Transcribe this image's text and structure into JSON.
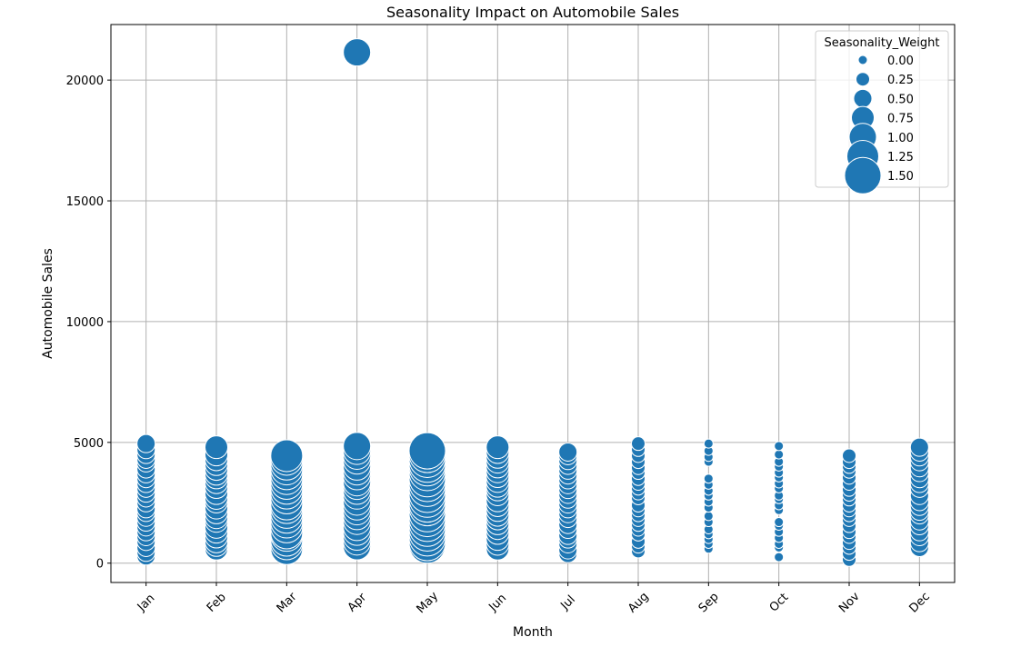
{
  "chart_data": {
    "type": "scatter",
    "title": "Seasonality Impact on Automobile Sales",
    "xlabel": "Month",
    "ylabel": "Automobile Sales",
    "categories": [
      "Jan",
      "Feb",
      "Mar",
      "Apr",
      "May",
      "Jun",
      "Jul",
      "Aug",
      "Sep",
      "Oct",
      "Nov",
      "Dec"
    ],
    "y_ticks": [
      0,
      5000,
      10000,
      15000,
      20000
    ],
    "ylim": [
      -800,
      22300
    ],
    "grid": true,
    "marker_color": "#1f77b4",
    "legend": {
      "title": "Seasonality_Weight",
      "placement": "top-right",
      "entries": [
        "0.00",
        "0.25",
        "0.50",
        "0.75",
        "1.00",
        "1.25",
        "1.50"
      ],
      "values": [
        0.0,
        0.25,
        0.5,
        0.75,
        1.0,
        1.25,
        1.5
      ]
    },
    "series": [
      {
        "month": "Jan",
        "weight": 0.5,
        "sales": [
          300,
          450,
          650,
          900,
          1100,
          1300,
          1500,
          1700,
          1900,
          2100,
          2250,
          2500,
          2700,
          2900,
          3100,
          3300,
          3500,
          3700,
          3900,
          4150,
          4300,
          4500,
          4700,
          4950
        ]
      },
      {
        "month": "Feb",
        "weight": 0.75,
        "sales": [
          600,
          750,
          900,
          1100,
          1300,
          1500,
          1750,
          1900,
          2100,
          2300,
          2550,
          2700,
          2900,
          3150,
          3350,
          3550,
          3700,
          3900,
          4100,
          4300,
          4500,
          4800
        ]
      },
      {
        "month": "Mar",
        "weight": 1.25,
        "sales": [
          600,
          800,
          950,
          1150,
          1250,
          1500,
          1700,
          1900,
          2100,
          2300,
          2450,
          2700,
          2900,
          3100,
          3300,
          3500,
          3700,
          3900,
          4100,
          4300,
          4450
        ]
      },
      {
        "month": "Apr",
        "weight": 1.0,
        "sales": [
          700,
          900,
          1100,
          1300,
          1500,
          1750,
          1950,
          2150,
          2350,
          2550,
          2800,
          3000,
          3200,
          3350,
          3600,
          3800,
          4000,
          4250,
          4450,
          4650,
          4850,
          21150
        ]
      },
      {
        "month": "May",
        "weight": 1.5,
        "sales": [
          750,
          850,
          1050,
          1250,
          1450,
          1650,
          1850,
          2050,
          2300,
          2450,
          2650,
          2850,
          3100,
          3300,
          3500,
          3750,
          3950,
          4100,
          4300,
          4500,
          4650
        ]
      },
      {
        "month": "Jun",
        "weight": 0.75,
        "sales": [
          600,
          800,
          1000,
          1250,
          1450,
          1650,
          1850,
          2000,
          2200,
          2400,
          2600,
          2850,
          3050,
          3200,
          3400,
          3600,
          3800,
          4000,
          4200,
          4400,
          4600,
          4800
        ]
      },
      {
        "month": "Jul",
        "weight": 0.5,
        "sales": [
          400,
          550,
          800,
          1000,
          1150,
          1400,
          1600,
          1850,
          2050,
          2250,
          2450,
          2650,
          2850,
          3050,
          3250,
          3450,
          3650,
          3850,
          4050,
          4250,
          4450,
          4600
        ]
      },
      {
        "month": "Aug",
        "weight": 0.25,
        "sales": [
          500,
          700,
          900,
          1200,
          1400,
          1600,
          1800,
          2000,
          2200,
          2400,
          2700,
          2900,
          3100,
          3300,
          3500,
          3750,
          3950,
          4200,
          4450,
          4700,
          4950
        ]
      },
      {
        "month": "Sep",
        "weight": 0.0,
        "sales": [
          600,
          800,
          1000,
          1200,
          1400,
          1700,
          1950,
          2300,
          2550,
          2800,
          3000,
          3250,
          3500,
          4200,
          4400,
          4650,
          4950
        ]
      },
      {
        "month": "Oct",
        "weight": 0.0,
        "sales": [
          250,
          650,
          800,
          1050,
          1300,
          1550,
          1700,
          2200,
          2400,
          2650,
          2800,
          3100,
          3300,
          3550,
          3750,
          4000,
          4200,
          4500,
          4850
        ]
      },
      {
        "month": "Nov",
        "weight": 0.25,
        "sales": [
          150,
          400,
          650,
          850,
          1100,
          1300,
          1550,
          1800,
          2000,
          2200,
          2400,
          2650,
          2850,
          3050,
          3300,
          3550,
          3800,
          4000,
          4200,
          4450
        ]
      },
      {
        "month": "Dec",
        "weight": 0.5,
        "sales": [
          650,
          850,
          1100,
          1300,
          1550,
          1750,
          2000,
          2150,
          2350,
          2550,
          2800,
          3100,
          3300,
          3500,
          3750,
          3950,
          4200,
          4400,
          4600,
          4800
        ]
      }
    ]
  }
}
